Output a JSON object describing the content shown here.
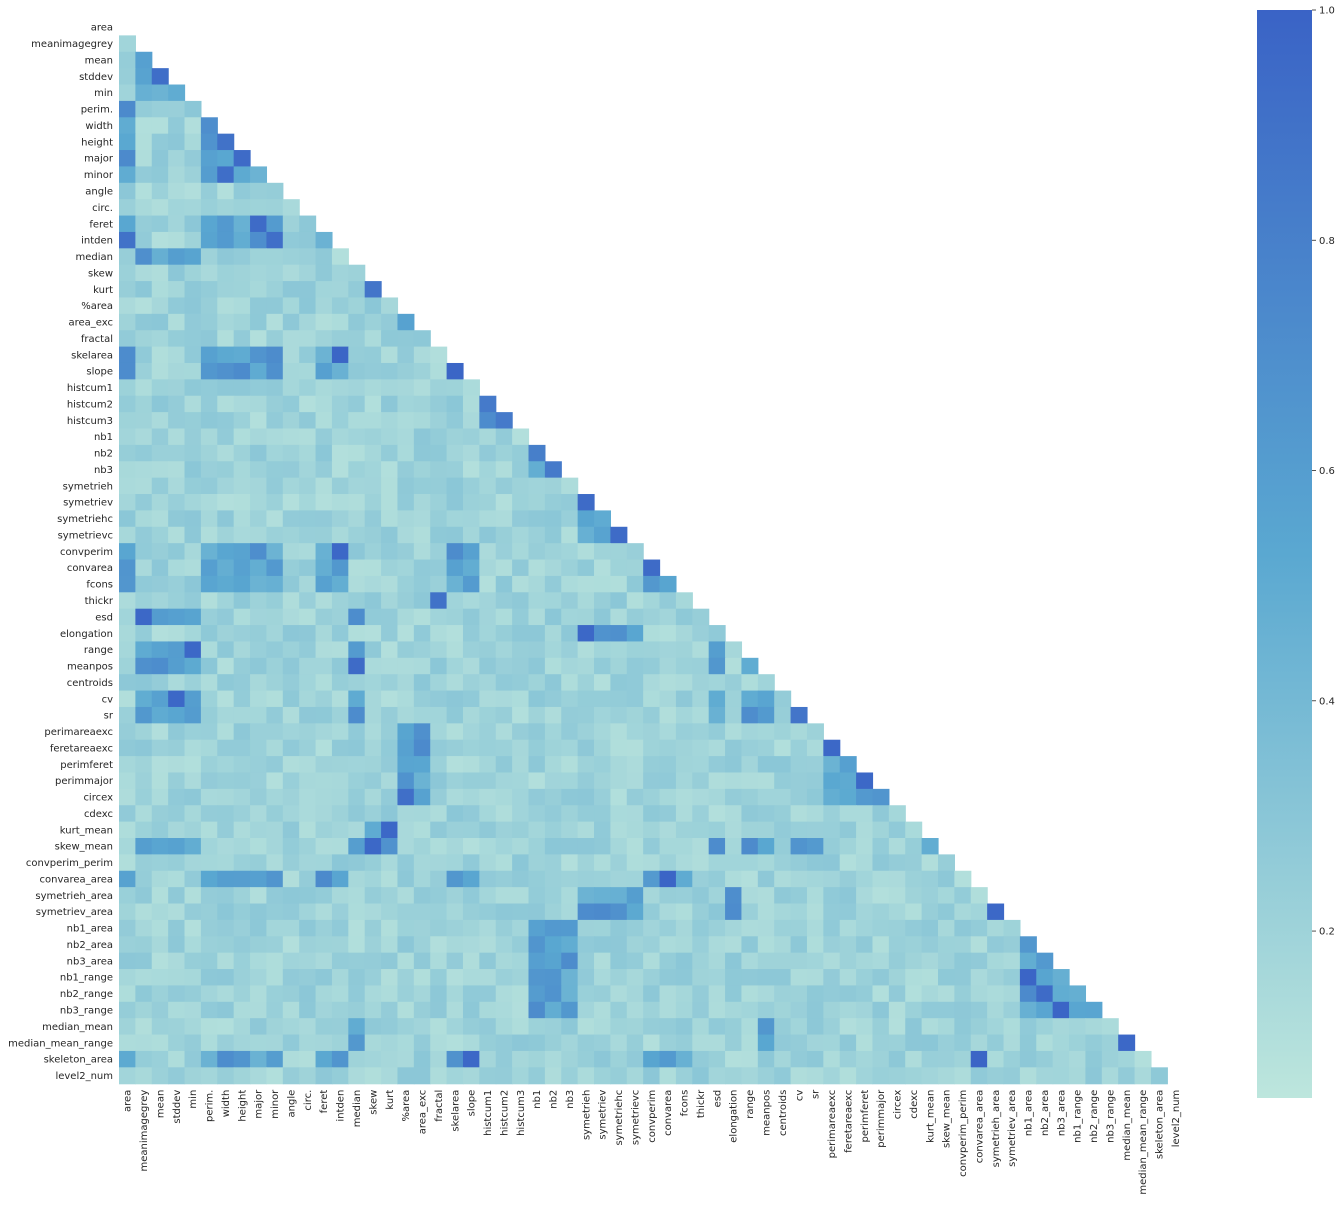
{
  "chart_data": {
    "type": "heatmap",
    "variant": "lower-triangle correlation matrix (mask on diagonal and upper triangle)",
    "title": "",
    "xlabel": "",
    "ylabel": "",
    "labels": [
      "area",
      "meanimagegrey",
      "mean",
      "stddev",
      "min",
      "perim.",
      "width",
      "height",
      "major",
      "minor",
      "angle",
      "circ.",
      "feret",
      "intden",
      "median",
      "skew",
      "kurt",
      "%area",
      "area_exc",
      "fractal",
      "skelarea",
      "slope",
      "histcum1",
      "histcum2",
      "histcum3",
      "nb1",
      "nb2",
      "nb3",
      "symetrieh",
      "symetriev",
      "symetriehc",
      "symetrievc",
      "convperim",
      "convarea",
      "fcons",
      "thickr",
      "esd",
      "elongation",
      "range",
      "meanpos",
      "centroids",
      "cv",
      "sr",
      "perimareaexc",
      "feretareaexc",
      "perimferet",
      "perimmajor",
      "circex",
      "cdexc",
      "kurt_mean",
      "skew_mean",
      "convperim_perim",
      "convarea_area",
      "symetrieh_area",
      "symetriev_area",
      "nb1_area",
      "nb2_area",
      "nb3_area",
      "nb1_range",
      "nb2_range",
      "nb3_range",
      "median_mean",
      "median_mean_range",
      "skeleton_area",
      "level2_num"
    ],
    "colorbar": {
      "range": [
        0,
        1
      ],
      "ticks": [
        "0.2",
        "0.4",
        "0.6",
        "0.8",
        "1.0"
      ],
      "tick_values": [
        0.2,
        0.4,
        0.6,
        0.8,
        1.0
      ],
      "color_low": "#bde6dd",
      "color_mid": "#5aa8d1",
      "color_high": "#3a63c6"
    },
    "grid": false,
    "legend": "colorbar right",
    "notable_pairs": [
      [
        "stddev",
        "mean",
        0.93
      ],
      [
        "height",
        "width",
        0.9
      ],
      [
        "major",
        "height",
        0.95
      ],
      [
        "minor",
        "width",
        0.93
      ],
      [
        "feret",
        "major",
        0.95
      ],
      [
        "intden",
        "area",
        0.9
      ],
      [
        "intden",
        "minor",
        0.92
      ],
      [
        "kurt",
        "skew",
        0.88
      ],
      [
        "skelarea",
        "intden",
        0.98
      ],
      [
        "slope",
        "skelarea",
        0.98
      ],
      [
        "histcum2",
        "histcum1",
        0.85
      ],
      [
        "histcum3",
        "histcum2",
        0.85
      ],
      [
        "nb2",
        "nb1",
        0.82
      ],
      [
        "nb3",
        "nb2",
        0.85
      ],
      [
        "symetriev",
        "symetrieh",
        0.95
      ],
      [
        "symetrievc",
        "symetriehc",
        0.95
      ],
      [
        "convperim",
        "intden",
        0.97
      ],
      [
        "convarea",
        "convperim",
        0.95
      ],
      [
        "thickr",
        "fractal",
        0.9
      ],
      [
        "esd",
        "meanimagegrey",
        0.97
      ],
      [
        "elongation",
        "symetrieh",
        0.97
      ],
      [
        "range",
        "min",
        0.97
      ],
      [
        "meanpos",
        "median",
        0.95
      ],
      [
        "cv",
        "stddev",
        0.97
      ],
      [
        "sr",
        "cv",
        0.88
      ],
      [
        "feretareaexc",
        "perimareaexc",
        0.97
      ],
      [
        "perimmajor",
        "perimferet",
        0.97
      ],
      [
        "circex",
        "%area",
        0.92
      ],
      [
        "kurt_mean",
        "kurt",
        0.97
      ],
      [
        "skew_mean",
        "skew",
        0.97
      ],
      [
        "convarea_area",
        "convarea",
        0.99
      ],
      [
        "symetriev_area",
        "symetrieh_area",
        0.97
      ],
      [
        "nb1_range",
        "nb1_area",
        0.99
      ],
      [
        "nb2_range",
        "nb2_area",
        0.95
      ],
      [
        "nb3_range",
        "nb3_area",
        0.99
      ],
      [
        "median_mean_range",
        "median_mean",
        0.97
      ],
      [
        "skeleton_area",
        "convarea_area",
        0.99
      ],
      [
        "skeleton_area",
        "slope",
        0.97
      ]
    ],
    "groups": {
      "size": [
        "area",
        "perim.",
        "width",
        "height",
        "major",
        "minor",
        "feret",
        "intden",
        "skelarea",
        "slope",
        "convperim",
        "convarea",
        "fcons",
        "convarea_area",
        "skeleton_area"
      ],
      "grey": [
        "meanimagegrey",
        "mean",
        "stddev",
        "min",
        "median",
        "meanpos",
        "cv",
        "sr",
        "range",
        "skew_mean",
        "esd"
      ],
      "shape": [
        "skew",
        "kurt",
        "kurt_mean",
        "skew_mean"
      ],
      "hist": [
        "histcum1",
        "histcum2",
        "histcum3"
      ],
      "nb": [
        "nb1",
        "nb2",
        "nb3",
        "nb1_area",
        "nb2_area",
        "nb3_area",
        "nb1_range",
        "nb2_range",
        "nb3_range"
      ],
      "sym": [
        "symetrieh",
        "symetriev",
        "symetriehc",
        "symetrievc",
        "elongation",
        "symetrieh_area",
        "symetriev_area"
      ],
      "exc": [
        "%area",
        "area_exc",
        "circex",
        "perimareaexc",
        "feretareaexc",
        "perimferet",
        "perimmajor"
      ],
      "median": [
        "median",
        "median_mean",
        "median_mean_range",
        "meanpos"
      ]
    }
  }
}
